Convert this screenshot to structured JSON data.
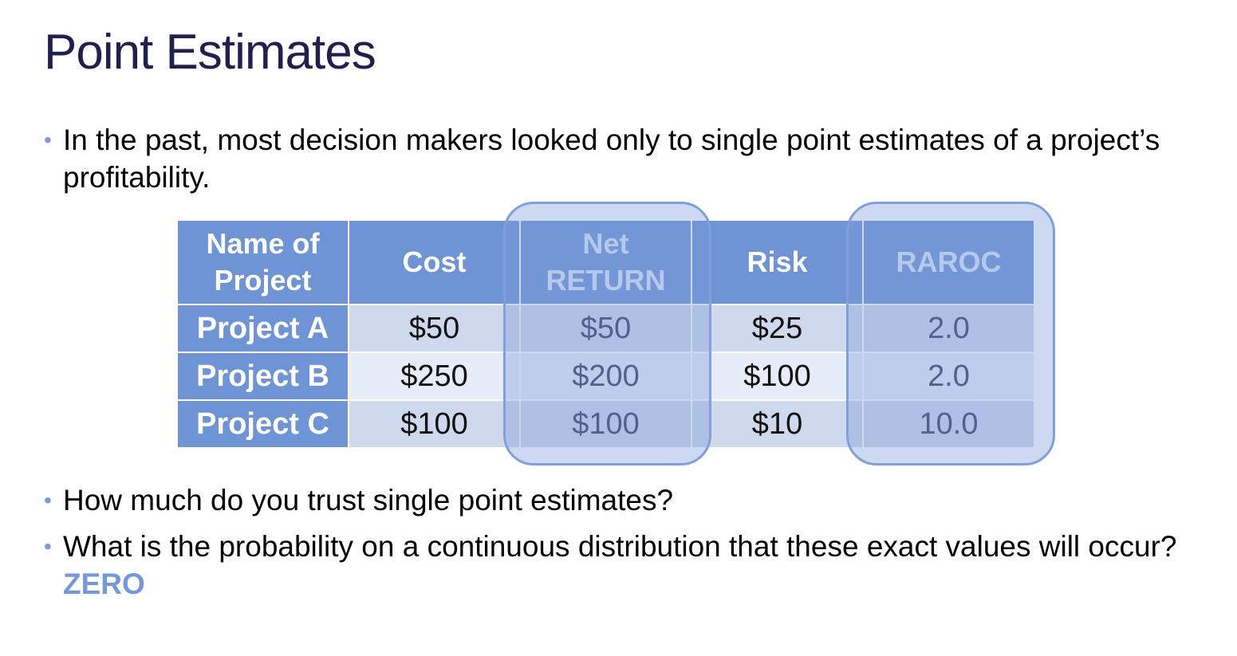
{
  "slide": {
    "title": "Point Estimates",
    "bullet_glyph": "•",
    "bullets": [
      "In the past, most decision makers looked only to single point estimates of a project’s profitability.",
      "How much do you trust single point estimates?",
      "What is the probability on a continuous distribution that these exact values will occur?"
    ],
    "answer": "ZERO",
    "answer_color": "#7598d8",
    "title_color": "#221f4f",
    "header_color": "#6f94d6"
  },
  "table": {
    "headers": {
      "name_line1": "Name of",
      "name_line2": "Project",
      "cost": "Cost",
      "net_line1": "Net",
      "net_line2": "RETURN",
      "risk": "Risk",
      "raroc": "RAROC"
    },
    "rows": [
      {
        "name": "Project A",
        "cost": "$50",
        "net_return": "$50",
        "risk": "$25",
        "raroc": "2.0"
      },
      {
        "name": "Project B",
        "cost": "$250",
        "net_return": "$200",
        "risk": "$100",
        "raroc": "2.0"
      },
      {
        "name": "Project C",
        "cost": "$100",
        "net_return": "$100",
        "risk": "$10",
        "raroc": "10.0"
      }
    ]
  }
}
